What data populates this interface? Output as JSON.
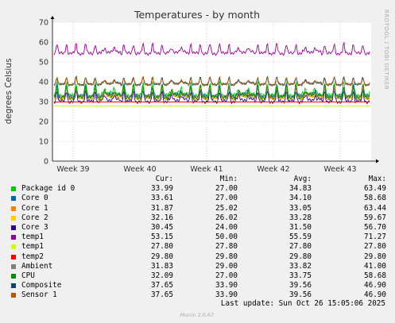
{
  "chart_data": {
    "type": "line",
    "title": "Temperatures - by month",
    "ylabel": "degrees Celsius",
    "ylim": [
      0,
      70
    ],
    "yticks": [
      0,
      10,
      20,
      30,
      40,
      50,
      60,
      70
    ],
    "x_ticks": [
      "Week 39",
      "Week 40",
      "Week 41",
      "Week 42",
      "Week 43"
    ],
    "grid": true,
    "legend_position": "bottom",
    "series": [
      {
        "name": "Package id 0",
        "color": "#00cc00",
        "cur": "33.99",
        "min": "27.00",
        "avg": "34.83",
        "max": "63.49",
        "mean": 34.8,
        "amp": 5.5
      },
      {
        "name": "Core 0",
        "color": "#0066b3",
        "cur": "33.61",
        "min": "27.00",
        "avg": "34.10",
        "max": "58.68",
        "mean": 34.1,
        "amp": 4.8
      },
      {
        "name": "Core 1",
        "color": "#ff8000",
        "cur": "31.87",
        "min": "25.02",
        "avg": "33.05",
        "max": "63.44",
        "mean": 33.0,
        "amp": 4.5
      },
      {
        "name": "Core 2",
        "color": "#ffcc00",
        "cur": "32.16",
        "min": "26.02",
        "avg": "33.28",
        "max": "59.67",
        "mean": 33.3,
        "amp": 4.5
      },
      {
        "name": "Core 3",
        "color": "#330099",
        "cur": "30.45",
        "min": "24.00",
        "avg": "31.50",
        "max": "56.70",
        "mean": 31.5,
        "amp": 4.5
      },
      {
        "name": "temp1",
        "color": "#990099",
        "cur": "53.15",
        "min": "50.00",
        "avg": "55.59",
        "max": "71.27",
        "mean": 55.6,
        "amp": 4.0
      },
      {
        "name": "temp1",
        "color": "#ccff00",
        "cur": "27.80",
        "min": "27.80",
        "avg": "27.80",
        "max": "27.80",
        "mean": 27.8,
        "amp": 0
      },
      {
        "name": "temp2",
        "color": "#ff0000",
        "cur": "29.80",
        "min": "29.80",
        "avg": "29.80",
        "max": "29.80",
        "mean": 29.8,
        "amp": 0
      },
      {
        "name": "Ambient",
        "color": "#808080",
        "cur": "31.83",
        "min": "29.00",
        "avg": "33.82",
        "max": "41.00",
        "mean": 33.8,
        "amp": 3.0
      },
      {
        "name": "CPU",
        "color": "#008f00",
        "cur": "32.09",
        "min": "27.00",
        "avg": "33.75",
        "max": "58.68",
        "mean": 33.8,
        "amp": 5.0
      },
      {
        "name": "Composite",
        "color": "#00487d",
        "cur": "37.65",
        "min": "33.90",
        "avg": "39.56",
        "max": "46.90",
        "mean": 39.6,
        "amp": 3.0
      },
      {
        "name": "Sensor 1",
        "color": "#b35a00",
        "cur": "37.65",
        "min": "33.90",
        "avg": "39.56",
        "max": "46.90",
        "mean": 39.6,
        "amp": 3.0
      }
    ]
  },
  "legend_headers": {
    "cur": "Cur:",
    "min": "Min:",
    "avg": "Avg:",
    "max": "Max:"
  },
  "last_update": "Last update: Sun Oct 26 15:05:06 2025",
  "side_label": "RRDTOOL / TOBI OETIKER",
  "footer": "Munin 2.0.67"
}
